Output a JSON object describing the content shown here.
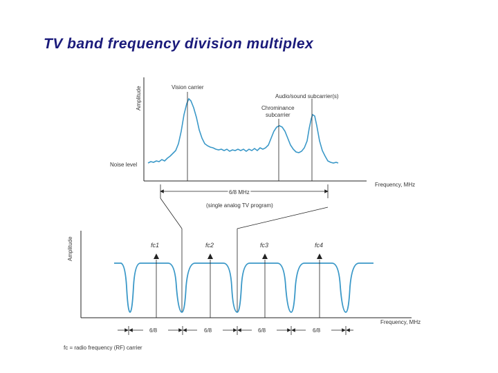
{
  "title": "TV band frequency division multiplex",
  "top_plot": {
    "y_label": "Amplitude",
    "x_label": "Frequency, MHz",
    "vision_carrier": "Vision carrier",
    "audio_subcarriers": "Audio/sound subcarrier(s)",
    "chrominance_line1": "Chrominance",
    "chrominance_line2": "subcarrier",
    "noise_level": "Noise level",
    "bandwidth": "6/8 MHz",
    "caption": "(single analog TV program)"
  },
  "bottom_plot": {
    "y_label": "Amplitude",
    "x_label": "Frequency, MHz",
    "carriers": [
      "fc1",
      "fc2",
      "fc3",
      "fc4"
    ],
    "spacings": [
      "6/8",
      "6/8",
      "6/8",
      "6/8"
    ],
    "footnote": "fc = radio frequency (RF) carrier"
  },
  "colors": {
    "title": "#1a1a7a",
    "trace": "#3a98c8",
    "lines": "#222222"
  }
}
